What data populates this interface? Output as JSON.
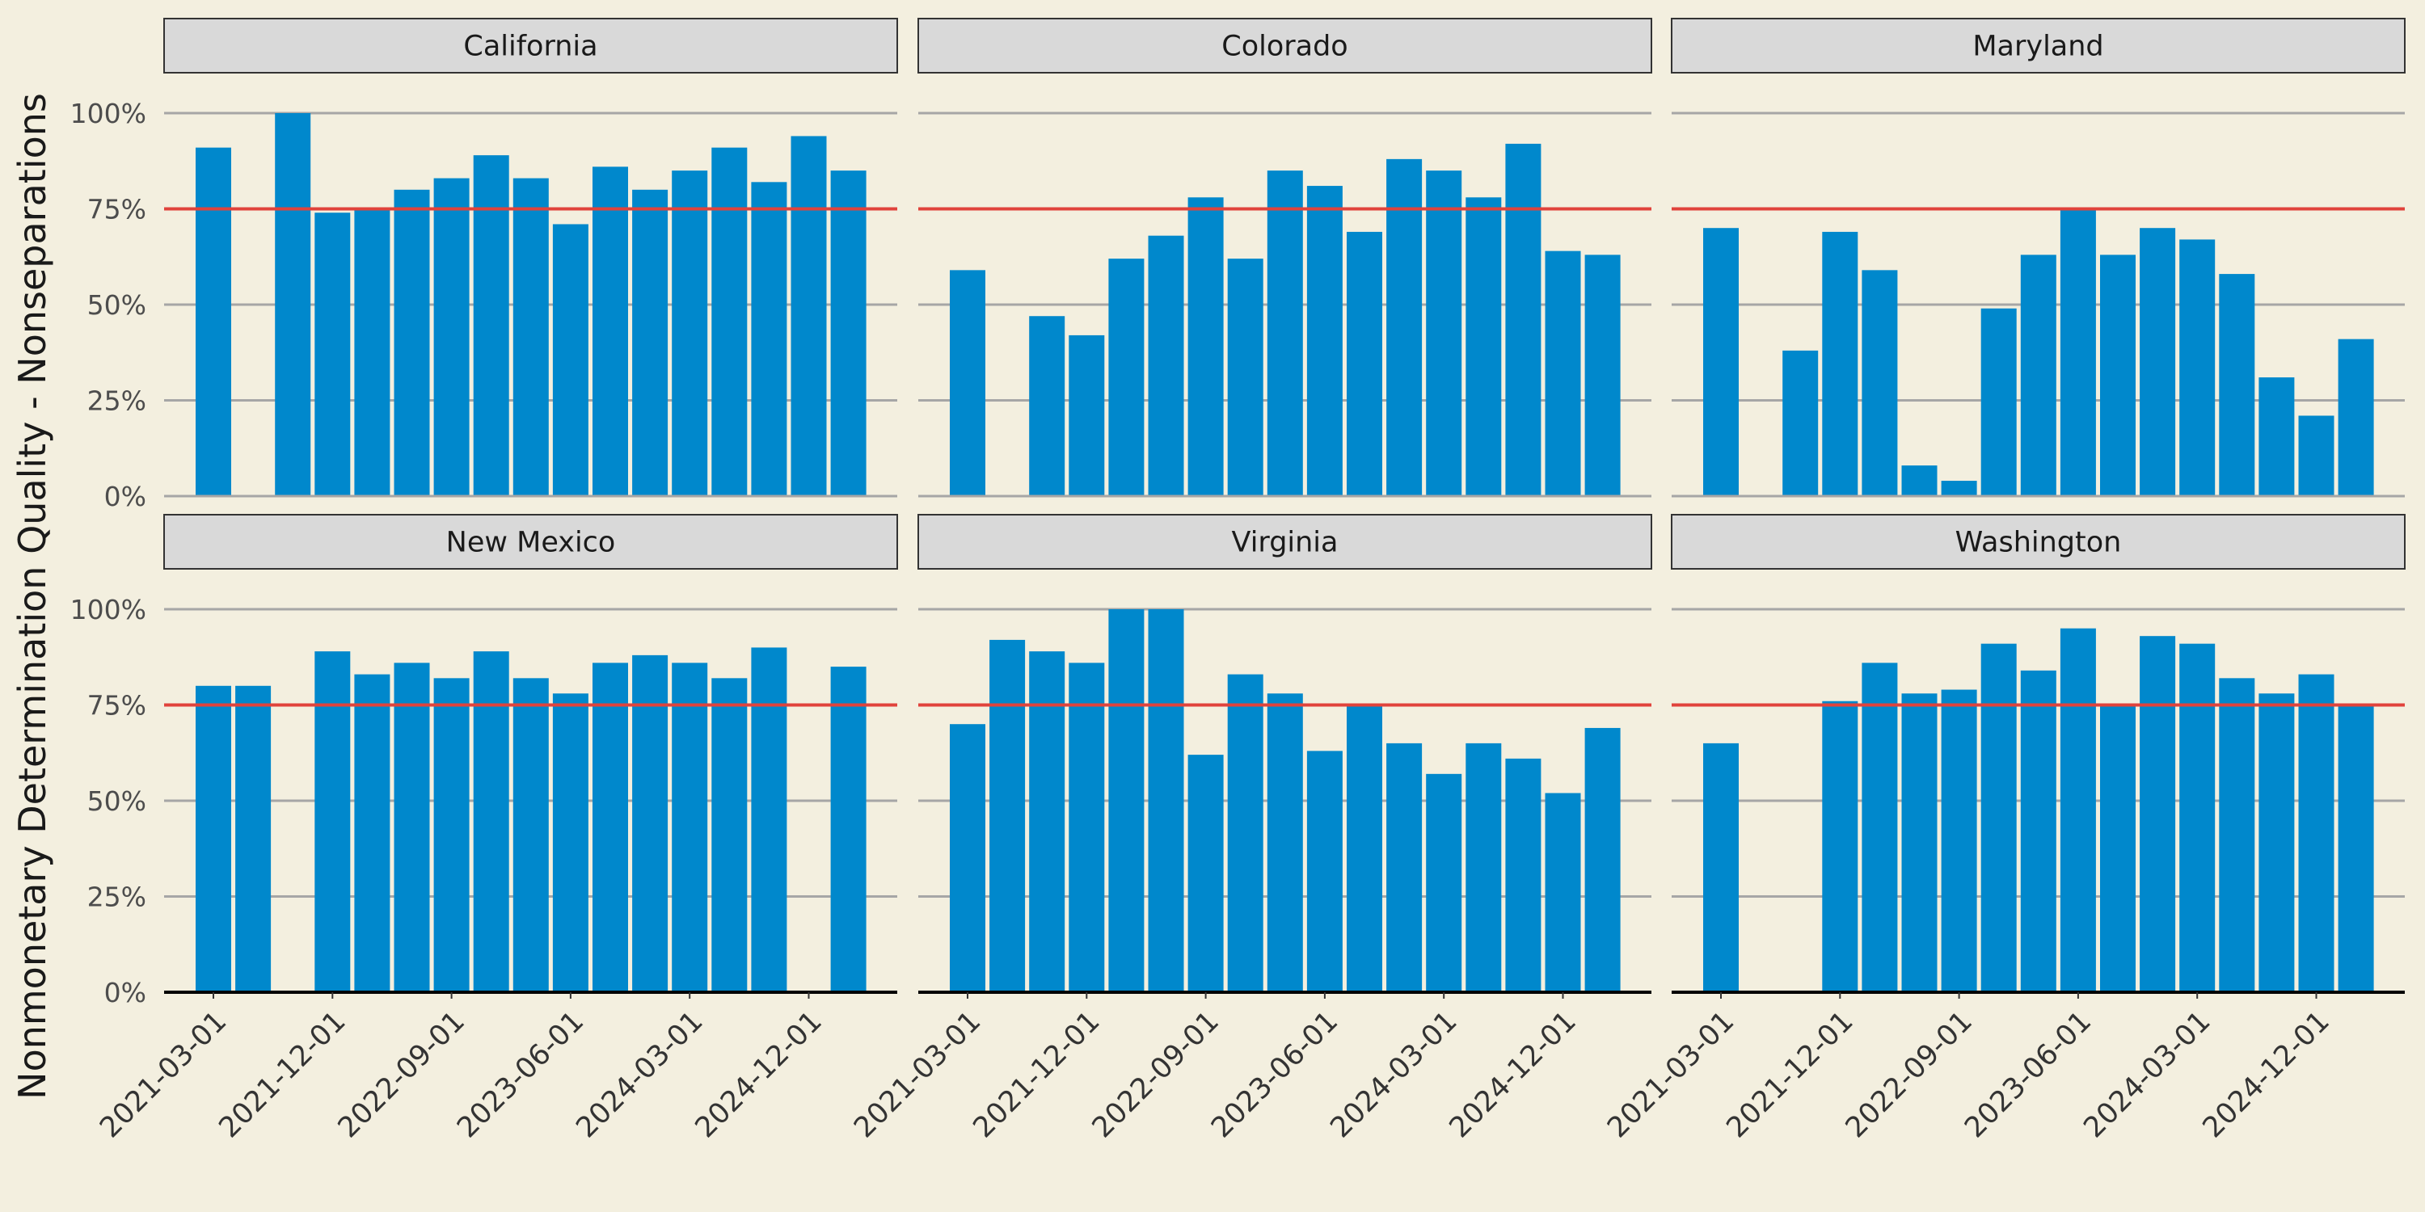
{
  "chart_data": {
    "type": "bar",
    "ylabel": "Nonmonetary Determination Quality - Nonseparations",
    "y_ticks": [
      "0%",
      "25%",
      "50%",
      "75%",
      "100%"
    ],
    "ylim": [
      0,
      1
    ],
    "x_ticks": [
      "2021-03-01",
      "2021-12-01",
      "2022-09-01",
      "2023-06-01",
      "2024-03-01",
      "2024-12-01"
    ],
    "categories": [
      "2021-03-01",
      "2021-06-01",
      "2021-09-01",
      "2021-12-01",
      "2022-03-01",
      "2022-06-01",
      "2022-09-01",
      "2022-12-01",
      "2023-03-01",
      "2023-06-01",
      "2023-09-01",
      "2023-12-01",
      "2024-03-01",
      "2024-06-01",
      "2024-09-01",
      "2024-12-01",
      "2025-03-01"
    ],
    "reference_line": 0.75,
    "colors": {
      "bar": "#0088cc",
      "reference": "#e0433c",
      "grid": "#a6a6a6",
      "strip_fill": "#d9d9d9",
      "background": "#f3efdf"
    },
    "panels": [
      {
        "name": "California",
        "values": [
          0.91,
          null,
          1.0,
          0.74,
          0.75,
          0.8,
          0.83,
          0.89,
          0.83,
          0.71,
          0.86,
          0.8,
          0.85,
          0.91,
          0.82,
          0.94,
          0.85
        ]
      },
      {
        "name": "Colorado",
        "values": [
          0.59,
          null,
          0.47,
          0.42,
          0.62,
          0.68,
          0.78,
          0.62,
          0.85,
          0.81,
          0.69,
          0.88,
          0.85,
          0.78,
          0.92,
          0.64,
          0.63
        ]
      },
      {
        "name": "Maryland",
        "values": [
          0.7,
          null,
          0.38,
          0.69,
          0.59,
          0.08,
          0.04,
          0.49,
          0.63,
          0.75,
          0.63,
          0.7,
          0.67,
          0.58,
          0.31,
          0.21,
          0.41
        ]
      },
      {
        "name": "New Mexico",
        "values": [
          0.8,
          0.8,
          null,
          0.89,
          0.83,
          0.86,
          0.82,
          0.89,
          0.82,
          0.78,
          0.86,
          0.88,
          0.86,
          0.82,
          0.9,
          null,
          0.85
        ]
      },
      {
        "name": "Virginia",
        "values": [
          0.7,
          0.92,
          0.89,
          0.86,
          1.0,
          1.0,
          0.62,
          0.83,
          0.78,
          0.63,
          0.75,
          0.65,
          0.57,
          0.65,
          0.61,
          0.52,
          0.69
        ]
      },
      {
        "name": "Washington",
        "values": [
          0.65,
          null,
          null,
          0.76,
          0.86,
          0.78,
          0.79,
          0.91,
          0.84,
          0.95,
          0.75,
          0.93,
          0.91,
          0.82,
          0.78,
          0.83,
          0.75
        ]
      }
    ]
  }
}
